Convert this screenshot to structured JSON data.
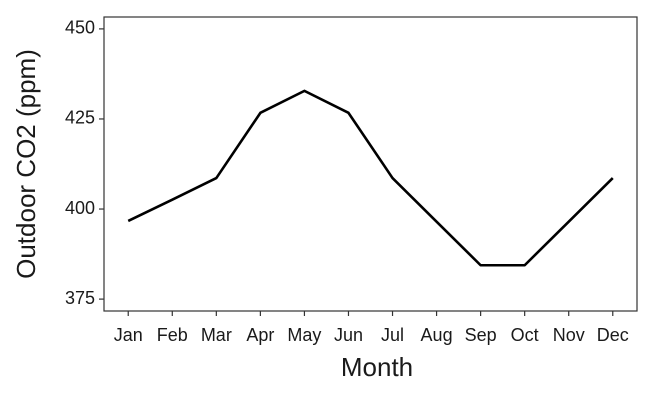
{
  "chart_data": {
    "type": "line",
    "x_label": "Month",
    "y_label": "Outdoor CO2 (ppm)",
    "categories": [
      "Jan",
      "Feb",
      "Mar",
      "Apr",
      "May",
      "Jun",
      "Jul",
      "Aug",
      "Sep",
      "Oct",
      "Nov",
      "Dec"
    ],
    "series": [
      {
        "name": "Outdoor CO2",
        "color": "#000000",
        "values": [
          396.7,
          402.6,
          408.6,
          426.7,
          432.8,
          426.7,
          408.6,
          396.5,
          384.4,
          384.4,
          396.5,
          408.6
        ]
      }
    ],
    "ylim": [
      371.7,
      453.3
    ],
    "yticks": [
      375,
      400,
      425,
      450
    ]
  }
}
